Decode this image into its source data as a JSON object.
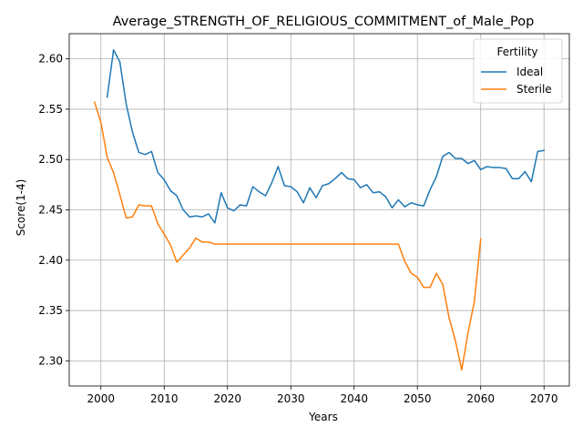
{
  "chart_data": {
    "type": "line",
    "title": "Average_STRENGTH_OF_RELIGIOUS_COMMITMENT_of_Male_Pop",
    "xlabel": "Years",
    "ylabel": "Score(1-4)",
    "xlim": [
      1995,
      2074
    ],
    "ylim": [
      2.275,
      2.625
    ],
    "xticks": [
      2000,
      2010,
      2020,
      2030,
      2040,
      2050,
      2060,
      2070
    ],
    "yticks": [
      2.3,
      2.35,
      2.4,
      2.45,
      2.5,
      2.55,
      2.6
    ],
    "xtick_labels": [
      "2000",
      "2010",
      "2020",
      "2030",
      "2040",
      "2050",
      "2060",
      "2070"
    ],
    "ytick_labels": [
      "2.30",
      "2.35",
      "2.40",
      "2.45",
      "2.50",
      "2.55",
      "2.60"
    ],
    "grid": true,
    "legend": {
      "title": "Fertility",
      "placement": "top-right"
    },
    "series": [
      {
        "name": "Ideal",
        "color": "#1f77b4",
        "x": [
          2001,
          2002,
          2003,
          2004,
          2005,
          2006,
          2007,
          2008,
          2009,
          2010,
          2011,
          2012,
          2013,
          2014,
          2015,
          2016,
          2017,
          2018,
          2019,
          2020,
          2021,
          2022,
          2023,
          2024,
          2025,
          2026,
          2027,
          2028,
          2029,
          2030,
          2031,
          2032,
          2033,
          2034,
          2035,
          2036,
          2037,
          2038,
          2039,
          2040,
          2041,
          2042,
          2043,
          2044,
          2045,
          2046,
          2047,
          2048,
          2049,
          2050,
          2051,
          2052,
          2053,
          2054,
          2055,
          2056,
          2057,
          2058,
          2059,
          2060,
          2061,
          2062,
          2063,
          2064,
          2065,
          2066,
          2067,
          2068,
          2069,
          2070
        ],
        "values": [
          2.562,
          2.609,
          2.597,
          2.555,
          2.527,
          2.507,
          2.505,
          2.508,
          2.487,
          2.48,
          2.469,
          2.464,
          2.45,
          2.443,
          2.444,
          2.443,
          2.446,
          2.437,
          2.467,
          2.452,
          2.449,
          2.455,
          2.454,
          2.473,
          2.468,
          2.464,
          2.477,
          2.493,
          2.474,
          2.473,
          2.468,
          2.457,
          2.472,
          2.462,
          2.474,
          2.476,
          2.481,
          2.487,
          2.481,
          2.48,
          2.472,
          2.475,
          2.467,
          2.468,
          2.463,
          2.452,
          2.46,
          2.453,
          2.457,
          2.455,
          2.454,
          2.47,
          2.483,
          2.503,
          2.507,
          2.501,
          2.501,
          2.496,
          2.499,
          2.49,
          2.493,
          2.492,
          2.492,
          2.491,
          2.481,
          2.481,
          2.488,
          2.478,
          2.508,
          2.509
        ]
      },
      {
        "name": "Sterile",
        "color": "#ff7f0e",
        "x": [
          1999,
          2000,
          2001,
          2002,
          2003,
          2004,
          2005,
          2006,
          2007,
          2008,
          2009,
          2010,
          2011,
          2012,
          2013,
          2014,
          2015,
          2016,
          2017,
          2018,
          2019,
          2020,
          2021,
          2022,
          2023,
          2024,
          2025,
          2026,
          2027,
          2028,
          2029,
          2030,
          2031,
          2032,
          2033,
          2034,
          2035,
          2036,
          2037,
          2038,
          2039,
          2040,
          2041,
          2042,
          2043,
          2044,
          2045,
          2046,
          2047,
          2048,
          2049,
          2050,
          2051,
          2052,
          2053,
          2054,
          2055,
          2056,
          2057,
          2058,
          2059,
          2060
        ],
        "values": [
          2.557,
          2.537,
          2.502,
          2.487,
          2.465,
          2.442,
          2.443,
          2.455,
          2.454,
          2.454,
          2.436,
          2.426,
          2.415,
          2.398,
          2.405,
          2.412,
          2.422,
          2.418,
          2.418,
          2.416,
          2.416,
          2.416,
          2.416,
          2.416,
          2.416,
          2.416,
          2.416,
          2.416,
          2.416,
          2.416,
          2.416,
          2.416,
          2.416,
          2.416,
          2.416,
          2.416,
          2.416,
          2.416,
          2.416,
          2.416,
          2.416,
          2.416,
          2.416,
          2.416,
          2.416,
          2.416,
          2.416,
          2.416,
          2.416,
          2.399,
          2.387,
          2.383,
          2.373,
          2.373,
          2.387,
          2.376,
          2.343,
          2.32,
          2.291,
          2.328,
          2.359,
          2.421
        ]
      }
    ]
  }
}
